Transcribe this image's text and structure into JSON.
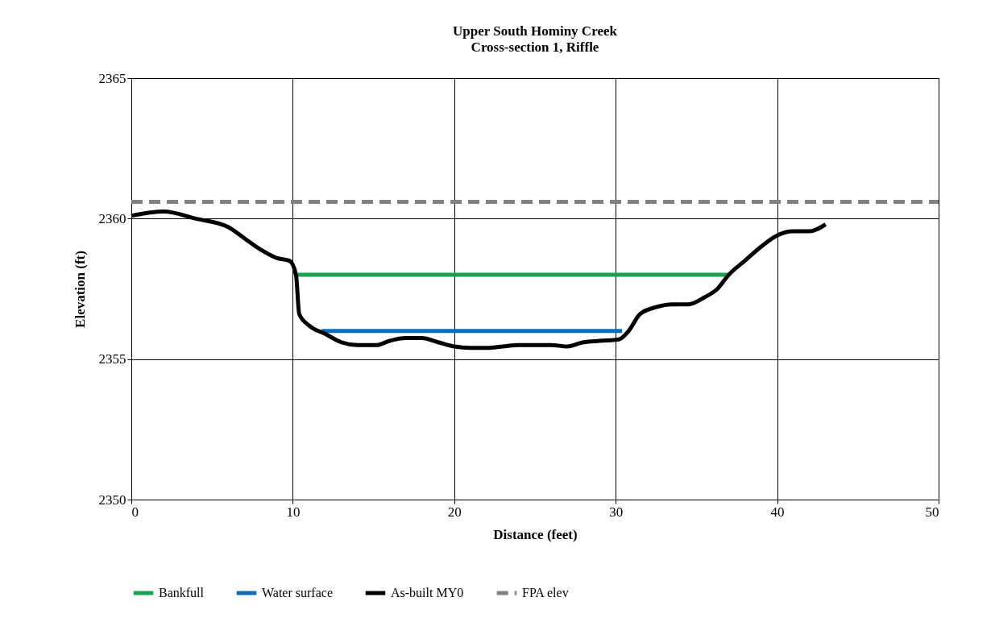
{
  "chart_data": {
    "type": "line",
    "title": "Upper South Hominy Creek",
    "subtitle": "Cross-section 1, Riffle",
    "xlabel": "Distance (feet)",
    "ylabel": "Elevation (ft)",
    "xlim": [
      0,
      50
    ],
    "xticks": [
      0,
      10,
      20,
      30,
      40,
      50
    ],
    "ylim": [
      2350,
      2365
    ],
    "yticks": [
      {
        "value": 2350,
        "label": "2350"
      },
      {
        "value": 2355,
        "label": "2355"
      },
      {
        "value": 2360,
        "label": "2360"
      },
      {
        "value": 2365,
        "label": "2365"
      }
    ],
    "grid": true,
    "legend": "bottom",
    "series": [
      {
        "name": "Bankfull",
        "color": "#16a34f",
        "line_style": "solid",
        "x": [
          10.3,
          37.0
        ],
        "values": [
          2358,
          2358
        ]
      },
      {
        "name": "Water surface",
        "color": "#0f6cb6",
        "line_style": "solid",
        "x": [
          11.8,
          30.4
        ],
        "values": [
          2356,
          2356
        ]
      },
      {
        "name": "As-built MY0",
        "color": "#000000",
        "line_style": "solid",
        "x": [
          0,
          2,
          4,
          6,
          7,
          8,
          9,
          9.8,
          10.2,
          10.4,
          11,
          12,
          13,
          14,
          15.2,
          16,
          17,
          18,
          19,
          20,
          21,
          22,
          23,
          24,
          25,
          26,
          27,
          28,
          29,
          30.2,
          30.8,
          31.5,
          32.5,
          33.5,
          34.5,
          35.5,
          36.3,
          37,
          38,
          39,
          40,
          41,
          42,
          43
        ],
        "values": [
          2360.1,
          2360.25,
          2360.0,
          2359.7,
          2359.3,
          2358.9,
          2358.6,
          2358.5,
          2358.0,
          2356.6,
          2356.2,
          2355.9,
          2355.6,
          2355.5,
          2355.5,
          2355.65,
          2355.75,
          2355.75,
          2355.6,
          2355.45,
          2355.4,
          2355.4,
          2355.45,
          2355.5,
          2355.5,
          2355.5,
          2355.45,
          2355.6,
          2355.65,
          2355.7,
          2356.0,
          2356.6,
          2356.85,
          2356.95,
          2356.95,
          2357.2,
          2357.5,
          2358.0,
          2358.5,
          2359.0,
          2359.4,
          2359.55,
          2359.55,
          2359.8
        ]
      },
      {
        "name": "FPA elev",
        "color": "#808080",
        "line_style": "dashed",
        "x": [
          0,
          50
        ],
        "values": [
          2360.6,
          2360.6
        ]
      }
    ]
  }
}
